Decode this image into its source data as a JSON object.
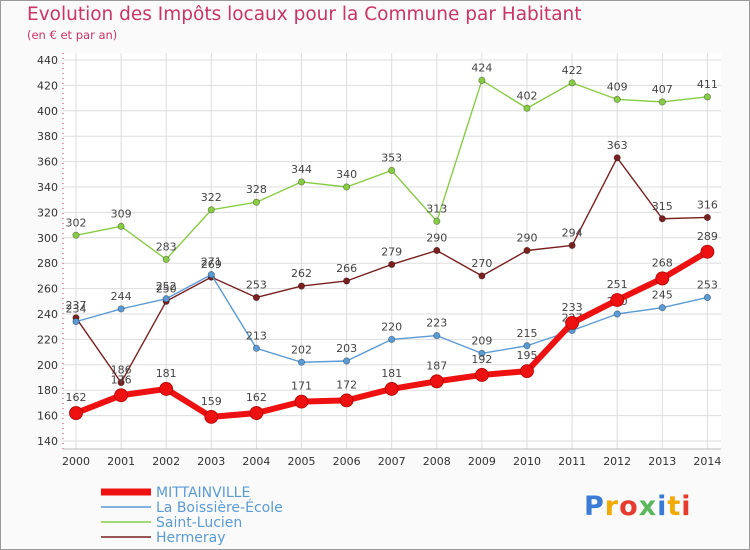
{
  "header": {
    "title": "Evolution des Impôts locaux pour la Commune par Habitant",
    "subtitle": "(en € et par an)"
  },
  "logo": {
    "text": "Proxiti"
  },
  "colors": {
    "title": "#cc3366",
    "grid": "#dddddd",
    "axis_text": "#333333",
    "plot_bg": "#ffffff"
  },
  "chart_data": {
    "type": "line",
    "x": [
      2000,
      2001,
      2002,
      2003,
      2004,
      2005,
      2006,
      2007,
      2008,
      2009,
      2010,
      2011,
      2012,
      2013,
      2014
    ],
    "xticks": [
      "2000",
      "2001",
      "2002",
      "2003",
      "2004",
      "2005",
      "2006",
      "2007",
      "2008",
      "2009",
      "2010",
      "2011",
      "2012",
      "2013",
      "2014"
    ],
    "yticks": [
      "140",
      "160",
      "180",
      "200",
      "220",
      "240",
      "260",
      "280",
      "300",
      "320",
      "340",
      "360",
      "380",
      "400",
      "420",
      "440"
    ],
    "ylim": [
      140,
      440
    ],
    "grid": true,
    "legend_position": "bottom-left",
    "series": [
      {
        "name": "MITTAINVILLE",
        "color": "#ee1111",
        "values": [
          162,
          176,
          181,
          159,
          162,
          171,
          172,
          181,
          187,
          192,
          195,
          233,
          251,
          268,
          289
        ],
        "labels": [
          "162",
          "176",
          "181",
          "159",
          "162",
          "171",
          "172",
          "181",
          "187",
          "192",
          "195",
          "233",
          "251",
          "268",
          "289"
        ]
      },
      {
        "name": "La Boissière-École",
        "color": "#5b9bd5",
        "values": [
          234,
          244,
          252,
          271,
          213,
          202,
          203,
          220,
          223,
          209,
          215,
          227,
          240,
          245,
          253
        ],
        "labels": [
          "234",
          "244",
          "252",
          "271",
          "213",
          "202",
          "203",
          "220",
          "223",
          "209",
          "215",
          "227",
          "240",
          "245",
          "253"
        ]
      },
      {
        "name": "Saint-Lucien",
        "color": "#88cc44",
        "values": [
          302,
          309,
          283,
          322,
          328,
          344,
          340,
          353,
          313,
          424,
          402,
          422,
          409,
          407,
          411
        ],
        "labels": [
          "302",
          "309",
          "283",
          "322",
          "328",
          "344",
          "340",
          "353",
          "313",
          "424",
          "402",
          "422",
          "409",
          "407",
          "411"
        ]
      },
      {
        "name": "Hermeray",
        "color": "#7a2020",
        "values": [
          237,
          186,
          250,
          269,
          253,
          262,
          266,
          279,
          290,
          270,
          290,
          294,
          363,
          315,
          316
        ],
        "labels": [
          "237",
          "186",
          "250",
          "269",
          "253",
          "262",
          "266",
          "279",
          "290",
          "270",
          "290",
          "294",
          "363",
          "315",
          "316"
        ]
      }
    ]
  }
}
